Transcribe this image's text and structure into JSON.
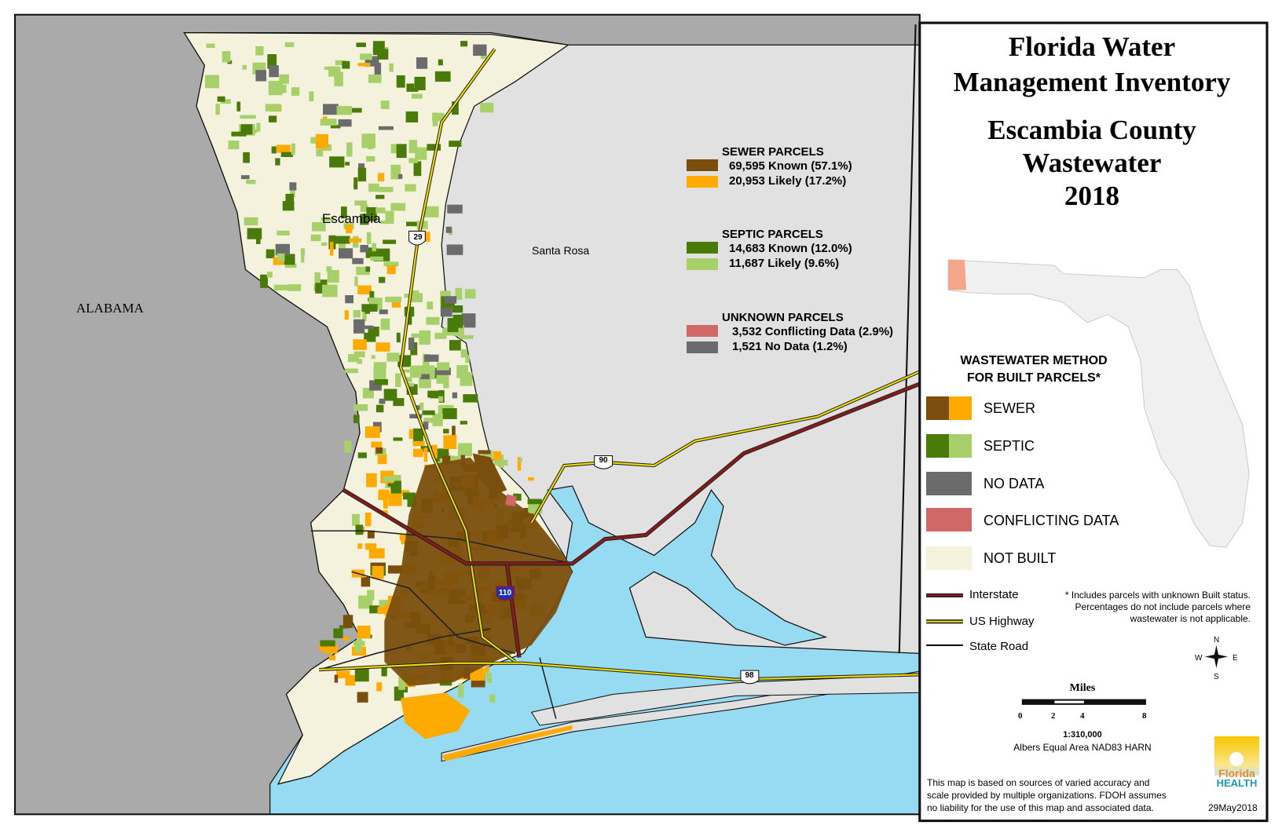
{
  "title": {
    "line1": "Florida Water",
    "line2": "Management Inventory",
    "line3": "Escambia County",
    "line4": "Wastewater",
    "line5": "2018"
  },
  "map": {
    "labels": {
      "escambia": "Escambia",
      "santa_rosa": "Santa Rosa",
      "alabama": "ALABAMA"
    },
    "shields": {
      "us29": "29",
      "us90": "90",
      "us98": "98",
      "i110": "110"
    },
    "colors": {
      "sewer_known": "#7a4e0c",
      "sewer_likely": "#ffaa00",
      "septic_known": "#4a7a0a",
      "septic_likely": "#a8d06a",
      "conflicting": "#d06868",
      "no_data": "#6b6b6b",
      "not_built": "#f4f2dc",
      "water": "#97dbf2",
      "other_land": "#e1e1e1",
      "out_of_state": "#aaaaaa",
      "interstate": "#6b1010",
      "us_highway": "#f0e000"
    }
  },
  "parcel_legend": {
    "sewer": {
      "heading": "SEWER PARCELS",
      "known": "69,595 Known (57.1%)",
      "likely": "20,953 Likely (17.2%)"
    },
    "septic": {
      "heading": "SEPTIC PARCELS",
      "known": "14,683 Known (12.0%)",
      "likely": "11,687 Likely (9.6%)"
    },
    "unknown": {
      "heading": "UNKNOWN PARCELS",
      "conflicting": "3,532 Conflicting Data (2.9%)",
      "no_data": "1,521 No Data (1.2%)"
    }
  },
  "method_legend": {
    "heading1": "WASTEWATER METHOD",
    "heading2": "FOR BUILT PARCELS*",
    "items": [
      "SEWER",
      "SEPTIC",
      "NO DATA",
      "CONFLICTING DATA",
      "NOT BUILT"
    ]
  },
  "road_legend": {
    "interstate": "Interstate",
    "us_highway": "US Highway",
    "state_road": "State Road"
  },
  "footnote": {
    "line1": "*  Includes parcels with unknown Built status.",
    "line2": "Percentages do not include parcels where",
    "line3": "wastewater is not applicable."
  },
  "compass": {
    "n": "N",
    "s": "S",
    "e": "E",
    "w": "W"
  },
  "scale": {
    "title": "Miles",
    "ticks": [
      "0",
      "2",
      "4",
      "8"
    ],
    "ratio": "1:310,000",
    "projection": "Albers Equal Area NAD83 HARN"
  },
  "disclaimer": {
    "line1": "This map is based on sources of varied accuracy and",
    "line2": "scale provided by multiple organizations. FDOH assumes",
    "line3": "no liability for the use of this map and associated data."
  },
  "logo": {
    "line1": "Florida",
    "line2": "HEALTH"
  },
  "date": "29May2018"
}
